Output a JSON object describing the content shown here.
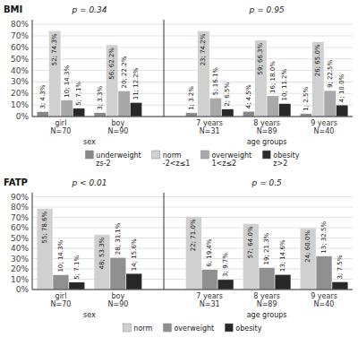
{
  "chart_data": [
    {
      "type": "bar",
      "title": "BMI",
      "categories": [
        "girl\nN=70",
        "boy\nN=90",
        "7 years\nN=31",
        "8 years\nN=89",
        "9 years\nN=40"
      ],
      "series": [
        {
          "name": "underweight\nzs-2",
          "color": "#888888",
          "values": [
            0.04285714285714286,
            0.03333333333333333,
            0.03225806451612903,
            0.0449438202247191,
            0.025
          ],
          "value_labels": [
            "3; 4.3%",
            "3; 3.3%",
            "1; 3.2%",
            "4; 4.5%",
            "1; 2.5%"
          ]
        },
        {
          "name": "norm\n-2<z≤1",
          "color": "#d0d0d0",
          "values": [
            0.7428571428571429,
            0.6222222222222222,
            0.7419354838709677,
            0.6629213483146067,
            0.65
          ],
          "value_labels": [
            "52; 74.3%",
            "56; 62.2%",
            "23; 74.2%",
            "59; 66.3%",
            "26; 65.0%"
          ]
        },
        {
          "name": "overweight\n1<z≤2",
          "color": "#a8a8a8",
          "values": [
            0.14285714285714285,
            0.2222222222222222,
            0.16129032258064516,
            0.1797752808988764,
            0.225
          ],
          "value_labels": [
            "10; 14.3%",
            "20; 22.2%",
            "5; 16.1%",
            "16; 18.0%",
            "9; 22.5%"
          ]
        },
        {
          "name": "obesity\nz>2",
          "color": "#282828",
          "values": [
            0.07142857142857142,
            0.12222222222222222,
            0.06451612903225806,
            0.11235955056179775,
            0.1
          ],
          "value_labels": [
            "5; 7.1%",
            "11; 12.2%",
            "2; 6.5%",
            "10; 11.2%",
            "4; 10.0%"
          ]
        }
      ],
      "annotations": [
        "p = 0.34",
        "p = 0.95",
        "sex",
        "age groups"
      ],
      "ylim": [
        0,
        0.84
      ],
      "yticks": [
        {
          "value": 0,
          "label": "0%"
        },
        {
          "value": 0.1,
          "label": "10%"
        },
        {
          "value": 0.2,
          "label": "20%"
        },
        {
          "value": 0.3,
          "label": "30%"
        },
        {
          "value": 0.4,
          "label": "40%"
        },
        {
          "value": 0.5,
          "label": "50%"
        },
        {
          "value": 0.6,
          "label": "60%"
        },
        {
          "value": 0.7,
          "label": "70%"
        },
        {
          "value": 0.8,
          "label": "80%"
        }
      ],
      "grid": true,
      "legend": "bottom",
      "data_labels": true
    },
    {
      "type": "bar",
      "title": "FATP",
      "categories": [
        "girl\nN=70",
        "boy\nN=90",
        "7 years\nN=31",
        "8 years\nN=89",
        "9 years\nN=40"
      ],
      "series": [
        {
          "name": "norm",
          "color": "#d0d0d0",
          "values": [
            0.7857142857142857,
            0.5333333333333333,
            0.7096774193548387,
            0.6404494382022472,
            0.6
          ],
          "value_labels": [
            "55; 78.6%",
            "48; 53.3%",
            "22; 71.0%",
            "57; 64.0%",
            "24; 60.0%"
          ]
        },
        {
          "name": "overweight",
          "color": "#909090",
          "values": [
            0.14285714285714285,
            0.3111111111111111,
            0.1935483870967742,
            0.21348314606741572,
            0.325
          ],
          "value_labels": [
            "10; 14.3%",
            "28; 31.1%",
            "6; 19.4%",
            "19; 21.3%",
            "13; 32.5%"
          ]
        },
        {
          "name": "obesity",
          "color": "#282828",
          "values": [
            0.07142857142857142,
            0.15555555555555556,
            0.0967741935483871,
            0.14606741573033707,
            0.075
          ],
          "value_labels": [
            "5; 7.1%",
            "14; 15.6%",
            "3; 9.7%",
            "13; 14.6%",
            "3; 7.5%"
          ]
        }
      ],
      "annotations": [
        "p < 0.01",
        "p = 0.5",
        "sex",
        "age groups"
      ],
      "ylim": [
        0,
        0.94
      ],
      "yticks": [
        {
          "value": 0,
          "label": "0%"
        },
        {
          "value": 0.1,
          "label": "10%"
        },
        {
          "value": 0.2,
          "label": "20%"
        },
        {
          "value": 0.3,
          "label": "30%"
        },
        {
          "value": 0.4,
          "label": "40%"
        },
        {
          "value": 0.5,
          "label": "50%"
        },
        {
          "value": 0.6,
          "label": "60%"
        },
        {
          "value": 0.7,
          "label": "70%"
        },
        {
          "value": 0.8,
          "label": "80%"
        },
        {
          "value": 0.9,
          "label": "90%"
        }
      ],
      "grid": true,
      "legend": "bottom",
      "data_labels": true
    }
  ]
}
